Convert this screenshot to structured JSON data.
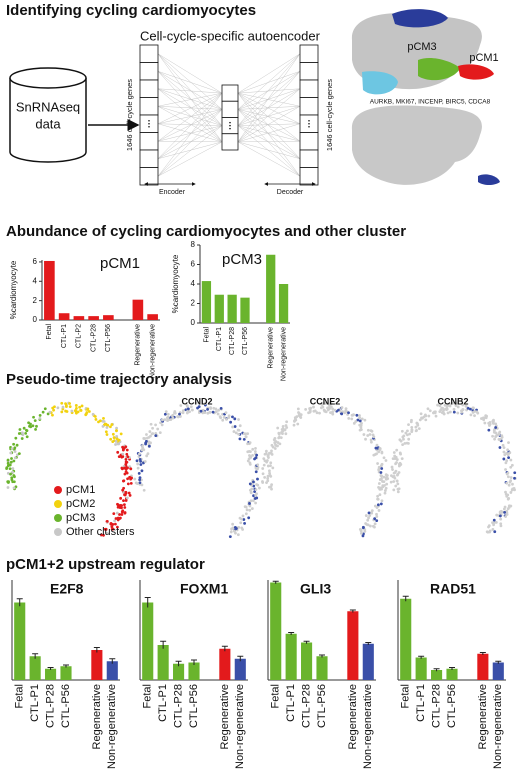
{
  "panel_a": {
    "title": "Identifying cycling cardiomyocytes",
    "autoencoder_title": "Cell-cycle-specific autoencoder",
    "input_label": [
      "SnRNAseq",
      "data"
    ],
    "gene_axis_label": "1646 cell-cycle genes",
    "encoder": "Encoder",
    "decoder": "Decoder",
    "umap_labels": [
      "pCM3",
      "pCM1"
    ],
    "marker_genes": "AURKB, MKI67, INCENP, BIRC5, CDCA8"
  },
  "panel_b": {
    "title": "Abundance of cycling cardiomyocytes and other cluster"
  },
  "panel_c": {
    "title": "Pseudo-time trajectory analysis",
    "legend": [
      {
        "name": "pCM1",
        "color": "#e31a1c"
      },
      {
        "name": "pCM2",
        "color": "#f2d20f"
      },
      {
        "name": "pCM3",
        "color": "#6ab42d"
      },
      {
        "name": "Other clusters",
        "color": "#c8c8c8"
      }
    ],
    "gene_titles": [
      "CCND2",
      "CCNE2",
      "CCNB2"
    ]
  },
  "panel_d": {
    "title": "pCM1+2 upstream regulator"
  },
  "chart_data": [
    {
      "type": "bar",
      "title": "pCM1",
      "y_label": "%cardiomyocyte",
      "color": "#e31a1c",
      "categories": [
        "Fetal",
        "CTL-P1",
        "CTL-P2",
        "CTL-P28",
        "CTL-P56",
        null,
        "Regenerative",
        "Non-regenerative"
      ],
      "values": [
        6.1,
        0.7,
        0.4,
        0.4,
        0.5,
        null,
        2.1,
        0.6
      ],
      "ylim": [
        0,
        6.2
      ],
      "yticks": [
        0,
        2,
        4,
        6
      ]
    },
    {
      "type": "bar",
      "title": "pCM3",
      "y_label": "%cardiomyocyte",
      "color": "#6ab42d",
      "categories": [
        "Fetal",
        "CTL-P1",
        "CTL-P28",
        "CTL-P56",
        null,
        "Regenerative",
        "Non-regenerative"
      ],
      "values": [
        4.3,
        2.9,
        2.9,
        2.6,
        null,
        7.0,
        4.0
      ],
      "ylim": [
        0,
        8
      ],
      "yticks": [
        0,
        2,
        4,
        6,
        8
      ]
    },
    {
      "type": "bar",
      "title": "E2F8",
      "colors": [
        "#6ab42d",
        "#6ab42d",
        "#6ab42d",
        "#6ab42d",
        null,
        "#e31a1c",
        "#3a4fa8"
      ],
      "categories": [
        "Fetal",
        "CTL-P1",
        "CTL-P28",
        "CTL-P56",
        null,
        "Regenerative",
        "Non-regenerative"
      ],
      "values": [
        62,
        19,
        9,
        11,
        null,
        24,
        15
      ],
      "errors": [
        3,
        2,
        1,
        1,
        null,
        2,
        2
      ],
      "ylim": [
        0,
        80
      ]
    },
    {
      "type": "bar",
      "title": "FOXM1",
      "colors": [
        "#6ab42d",
        "#6ab42d",
        "#6ab42d",
        "#6ab42d",
        null,
        "#e31a1c",
        "#3a4fa8"
      ],
      "categories": [
        "Fetal",
        "CTL-P1",
        "CTL-P28",
        "CTL-P56",
        null,
        "Regenerative",
        "Non-regenerative"
      ],
      "values": [
        62,
        28,
        13,
        14,
        null,
        25,
        17
      ],
      "errors": [
        4,
        3,
        2,
        2,
        null,
        2,
        2
      ],
      "ylim": [
        0,
        80
      ]
    },
    {
      "type": "bar",
      "title": "GLI3",
      "colors": [
        "#6ab42d",
        "#6ab42d",
        "#6ab42d",
        "#6ab42d",
        null,
        "#e31a1c",
        "#3a4fa8"
      ],
      "categories": [
        "Fetal",
        "CTL-P1",
        "CTL-P28",
        "CTL-P56",
        null,
        "Regenerative",
        "Non-regenerative"
      ],
      "values": [
        78,
        37,
        30,
        19,
        null,
        55,
        29
      ],
      "errors": [
        1,
        1,
        1,
        1,
        null,
        1,
        1
      ],
      "ylim": [
        0,
        80
      ]
    },
    {
      "type": "bar",
      "title": "RAD51",
      "colors": [
        "#6ab42d",
        "#6ab42d",
        "#6ab42d",
        "#6ab42d",
        null,
        "#e31a1c",
        "#3a4fa8"
      ],
      "categories": [
        "Fetal",
        "CTL-P1",
        "CTL-P28",
        "CTL-P56",
        null,
        "Regenerative",
        "Non-regenerative"
      ],
      "values": [
        65,
        18,
        8,
        9,
        null,
        21,
        14
      ],
      "errors": [
        2,
        1,
        1,
        1,
        null,
        1,
        1
      ],
      "ylim": [
        0,
        80
      ]
    }
  ]
}
